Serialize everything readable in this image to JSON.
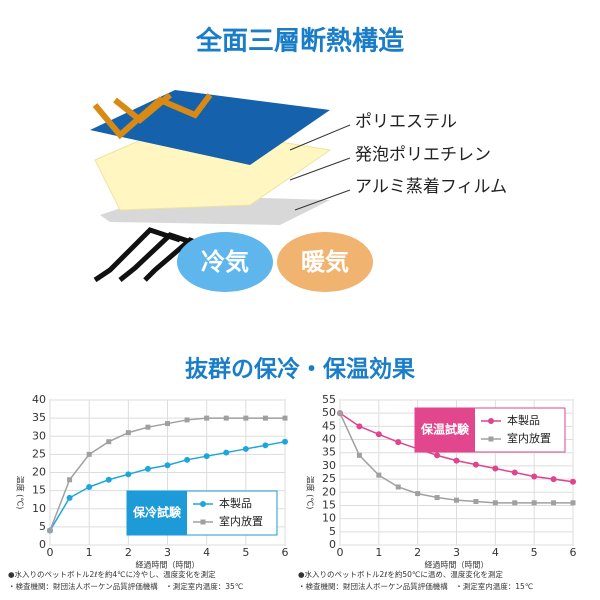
{
  "header": {
    "title": "全面三層断熱構造"
  },
  "diagram": {
    "layers": [
      "ポリエステル",
      "発泡ポリエチレン",
      "アルミ蒸着フィルム"
    ],
    "cold": "冷気",
    "warm": "暖気"
  },
  "section_title": "抜群の保冷・保温効果",
  "chart_data": [
    {
      "type": "line",
      "x_label": "経過時間（時間）",
      "y_label": "温度 (℃)",
      "xlim": [
        0,
        6
      ],
      "xticks": [
        0,
        1,
        2,
        3,
        4,
        5,
        6
      ],
      "ylim": [
        0,
        40
      ],
      "yticks": [
        0,
        5,
        10,
        15,
        20,
        25,
        30,
        35,
        40
      ],
      "grid": true,
      "legend_title": "保冷試験",
      "legend_title_color": "#1d9ad8",
      "legend_position": "lower right",
      "series": [
        {
          "name": "本製品",
          "color": "#1ea6dc",
          "marker": "circle",
          "x": [
            0,
            0.5,
            1,
            1.5,
            2,
            2.5,
            3,
            3.5,
            4,
            4.5,
            5,
            5.5,
            6
          ],
          "values": [
            4,
            13,
            16,
            18,
            19.5,
            21,
            22,
            23.5,
            24.5,
            25.5,
            26.5,
            27.5,
            28.5
          ]
        },
        {
          "name": "室内放置",
          "color": "#a0a0a0",
          "marker": "square",
          "x": [
            0,
            0.5,
            1,
            1.5,
            2,
            2.5,
            3,
            3.5,
            4,
            4.5,
            5,
            5.5,
            6
          ],
          "values": [
            4,
            18,
            25,
            28.5,
            31,
            32.5,
            33.5,
            34.5,
            35,
            35,
            35,
            35,
            35
          ]
        }
      ],
      "notes": [
        "●水入りのペットボトル2ℓを約4℃に冷やし、温度変化を測定",
        "・検査機関：財団法人ボーケン品質評価機構　・測定室内温度：35℃"
      ]
    },
    {
      "type": "line",
      "x_label": "経過時間（時間）",
      "y_label": "温度 (℃)",
      "xlim": [
        0,
        6
      ],
      "xticks": [
        0,
        1,
        2,
        3,
        4,
        5,
        6
      ],
      "ylim": [
        0,
        55
      ],
      "yticks": [
        0,
        5,
        10,
        15,
        20,
        25,
        30,
        35,
        40,
        45,
        50,
        55
      ],
      "grid": true,
      "legend_title": "保温試験",
      "legend_title_color": "#e2468c",
      "legend_position": "upper right",
      "series": [
        {
          "name": "本製品",
          "color": "#e0448c",
          "marker": "circle",
          "x": [
            0,
            0.5,
            1,
            1.5,
            2,
            2.5,
            3,
            3.5,
            4,
            4.5,
            5,
            5.5,
            6
          ],
          "values": [
            50,
            45,
            42,
            39,
            36.5,
            34,
            32,
            30.5,
            29,
            27.5,
            26,
            25,
            24
          ]
        },
        {
          "name": "室内放置",
          "color": "#a0a0a0",
          "marker": "square",
          "x": [
            0,
            0.5,
            1,
            1.5,
            2,
            2.5,
            3,
            3.5,
            4,
            4.5,
            5,
            5.5,
            6
          ],
          "values": [
            50,
            34,
            26.5,
            22,
            19.5,
            18,
            17,
            16.5,
            16,
            16,
            16,
            16,
            16
          ]
        }
      ],
      "notes": [
        "●水入りのペットボトル2ℓを約50℃に温め、温度変化を測定",
        "・検査機関：財団法人ボーケン品質評価機構　・測定室内温度：15℃"
      ]
    }
  ]
}
